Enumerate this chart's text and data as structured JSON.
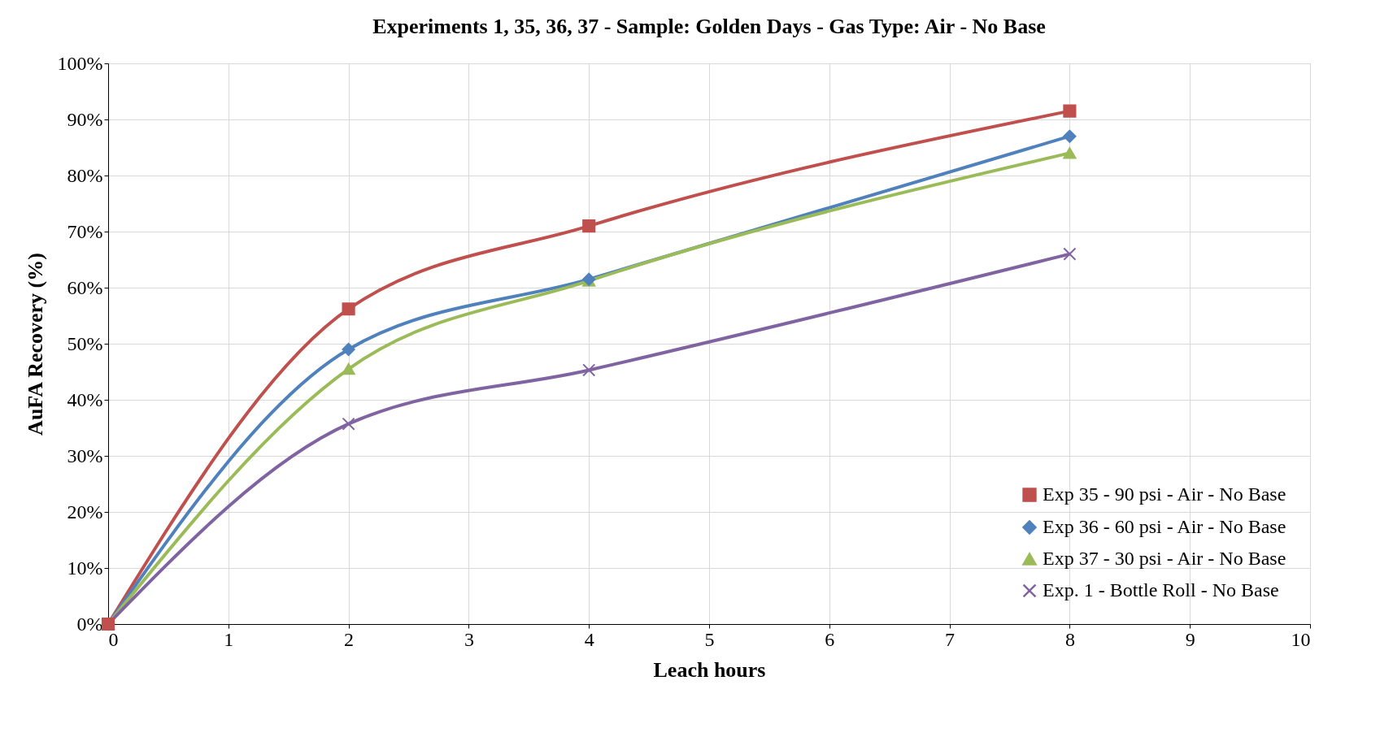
{
  "chart_data": {
    "type": "line",
    "title": "Experiments 1, 35, 36, 37 - Sample: Golden Days - Gas Type: Air  -  No  Base",
    "xlabel": "Leach hours",
    "ylabel": "AuFA Recovery (%)",
    "x": [
      0,
      2,
      4,
      8
    ],
    "series": [
      {
        "name": "Exp 35 - 90 psi - Air - No Base",
        "color": "#c0504d",
        "marker": "square",
        "values": [
          0,
          56.2,
          71,
          91.5
        ]
      },
      {
        "name": "Exp 36 - 60 psi - Air - No Base",
        "color": "#4f81bd",
        "marker": "diamond",
        "values": [
          0,
          49,
          61.5,
          87
        ]
      },
      {
        "name": "Exp 37 - 30 psi - Air - No Base",
        "color": "#9bbb59",
        "marker": "triangle",
        "values": [
          0,
          45.5,
          61.2,
          84
        ]
      },
      {
        "name": "Exp. 1 - Bottle Roll - No Base",
        "color": "#8064a2",
        "marker": "cross",
        "values": [
          0,
          35.7,
          45.3,
          66
        ]
      }
    ],
    "xlim": [
      0,
      10
    ],
    "xticks": [
      0,
      1,
      2,
      3,
      4,
      5,
      6,
      7,
      8,
      9,
      10
    ],
    "ylim": [
      0,
      100
    ],
    "yticks": [
      {
        "value": 0,
        "label": "0%"
      },
      {
        "value": 10,
        "label": "10%"
      },
      {
        "value": 20,
        "label": "20%"
      },
      {
        "value": 30,
        "label": "30%"
      },
      {
        "value": 40,
        "label": "40%"
      },
      {
        "value": 50,
        "label": "50%"
      },
      {
        "value": 60,
        "label": "60%"
      },
      {
        "value": 70,
        "label": "70%"
      },
      {
        "value": 80,
        "label": "80%"
      },
      {
        "value": 90,
        "label": "90%"
      },
      {
        "value": 100,
        "label": "100%"
      }
    ],
    "grid": true,
    "legend": "bottom right",
    "line_style": "solid"
  }
}
